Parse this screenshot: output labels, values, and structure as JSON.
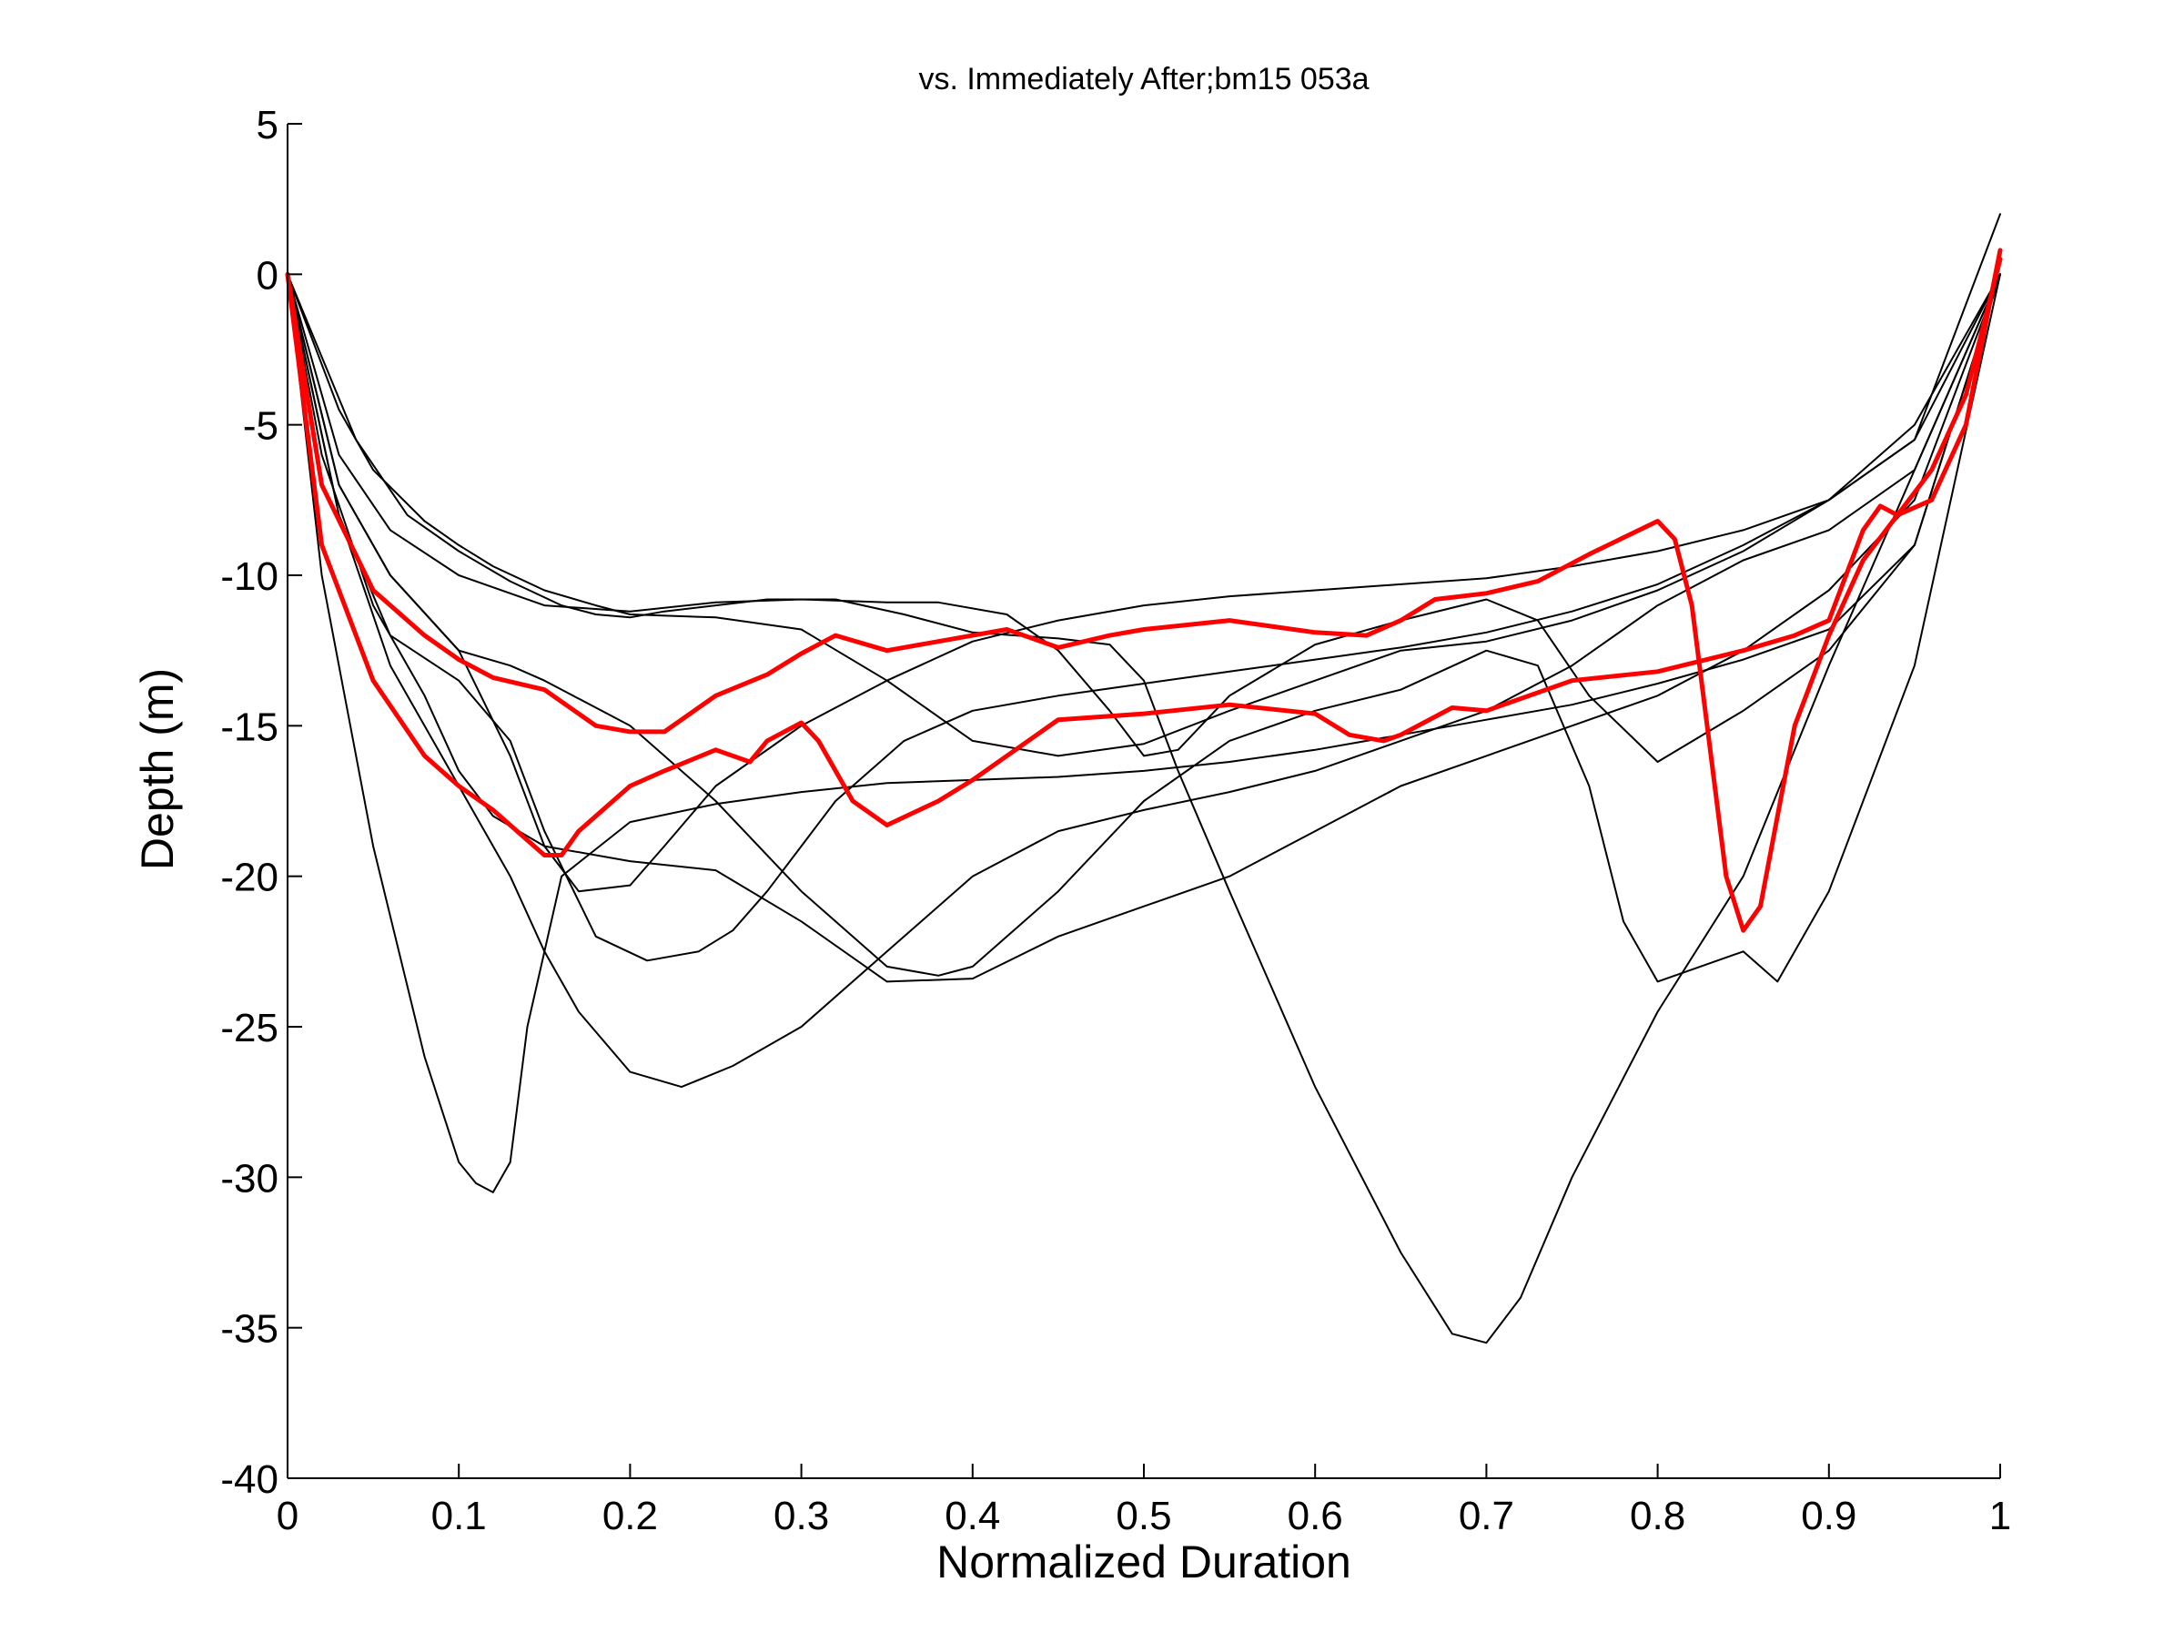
{
  "chart_data": {
    "type": "line",
    "title": "vs. Immediately After;bm15 053a",
    "xlabel": "Normalized Duration",
    "ylabel": "Depth (m)",
    "xlim": [
      0,
      1
    ],
    "ylim": [
      -40,
      5
    ],
    "xticks": [
      "0",
      "0.1",
      "0.2",
      "0.3",
      "0.4",
      "0.5",
      "0.6",
      "0.7",
      "0.8",
      "0.9",
      "1"
    ],
    "yticks": [
      "5",
      "0",
      "-5",
      "-10",
      "-15",
      "-20",
      "-25",
      "-30",
      "-35",
      "-40"
    ],
    "grid": false,
    "legend": "none",
    "colors": {
      "comparison": "#000000",
      "highlight": "#ff0000",
      "axes": "#000000",
      "background": "#ffffff"
    },
    "series": [
      {
        "group": "comparison",
        "x": [
          0,
          0.02,
          0.05,
          0.08,
          0.1,
          0.11,
          0.12,
          0.13,
          0.14,
          0.16,
          0.2,
          0.25,
          0.3,
          0.35,
          0.4,
          0.45,
          0.5,
          0.55,
          0.6,
          0.65,
          0.7,
          0.75,
          0.8,
          0.85,
          0.9,
          0.95,
          1.0
        ],
        "y": [
          0,
          -10,
          -19,
          -26,
          -29.5,
          -30.2,
          -30.5,
          -29.5,
          -25,
          -20,
          -18.2,
          -17.6,
          -17.2,
          -16.9,
          -16.8,
          -16.7,
          -16.5,
          -16.2,
          -15.8,
          -15.3,
          -14.8,
          -14.3,
          -13.6,
          -12.8,
          -11.8,
          -9,
          0
        ]
      },
      {
        "group": "comparison",
        "x": [
          0,
          0.03,
          0.06,
          0.1,
          0.13,
          0.15,
          0.17,
          0.2,
          0.22,
          0.25,
          0.3,
          0.35,
          0.4,
          0.45,
          0.5,
          0.55,
          0.6,
          0.65,
          0.7,
          0.75,
          0.8,
          0.85,
          0.9,
          0.95,
          1.0
        ],
        "y": [
          0,
          -7,
          -10,
          -12.5,
          -16,
          -19,
          -20.5,
          -20.3,
          -19,
          -17,
          -15,
          -13.5,
          -12.2,
          -11.5,
          -11,
          -10.7,
          -10.5,
          -10.3,
          -10.1,
          -9.7,
          -9.2,
          -8.5,
          -7.5,
          -5.5,
          0
        ]
      },
      {
        "group": "comparison",
        "x": [
          0,
          0.03,
          0.06,
          0.1,
          0.13,
          0.15,
          0.18,
          0.21,
          0.24,
          0.26,
          0.28,
          0.32,
          0.36,
          0.4,
          0.45,
          0.5,
          0.55,
          0.6,
          0.65,
          0.7,
          0.75,
          0.8,
          0.85,
          0.9,
          0.95,
          1.0
        ],
        "y": [
          0,
          -8,
          -12,
          -13.5,
          -15.5,
          -18.5,
          -22,
          -22.8,
          -22.5,
          -21.8,
          -20.5,
          -17.5,
          -15.5,
          -14.5,
          -14,
          -13.6,
          -13.2,
          -12.8,
          -12.4,
          -11.9,
          -11.2,
          -10.3,
          -9,
          -7.5,
          -5,
          0
        ]
      },
      {
        "group": "comparison",
        "x": [
          0,
          0.03,
          0.06,
          0.1,
          0.13,
          0.15,
          0.17,
          0.2,
          0.23,
          0.26,
          0.3,
          0.35,
          0.4,
          0.45,
          0.5,
          0.55,
          0.6,
          0.65,
          0.7,
          0.75,
          0.8,
          0.85,
          0.9,
          0.95,
          1.0
        ],
        "y": [
          0,
          -8,
          -13,
          -17,
          -20,
          -22.5,
          -24.5,
          -26.5,
          -27,
          -26.3,
          -25,
          -22.5,
          -20,
          -18.5,
          -17.8,
          -17.2,
          -16.5,
          -15.5,
          -14.5,
          -13,
          -11,
          -9.5,
          -8.5,
          -6.5,
          0
        ]
      },
      {
        "group": "comparison",
        "x": [
          0,
          0.04,
          0.07,
          0.1,
          0.13,
          0.16,
          0.18,
          0.2,
          0.22,
          0.25,
          0.28,
          0.32,
          0.36,
          0.4,
          0.45,
          0.48,
          0.5,
          0.52,
          0.55,
          0.6,
          0.65,
          0.68,
          0.7,
          0.72,
          0.75,
          0.8,
          0.85,
          0.9,
          0.95,
          1.0
        ],
        "y": [
          0,
          -5.5,
          -8,
          -9.2,
          -10.2,
          -11,
          -11.3,
          -11.4,
          -11.2,
          -11,
          -10.8,
          -10.8,
          -11.3,
          -11.9,
          -12.1,
          -12.3,
          -13.5,
          -16.5,
          -20.5,
          -27,
          -32.5,
          -35.2,
          -35.5,
          -34,
          -30,
          -24.5,
          -20,
          -13,
          -6.5,
          0
        ]
      },
      {
        "group": "comparison",
        "x": [
          0,
          0.03,
          0.06,
          0.1,
          0.13,
          0.15,
          0.2,
          0.25,
          0.3,
          0.35,
          0.38,
          0.4,
          0.45,
          0.5,
          0.55,
          0.6,
          0.65,
          0.7,
          0.73,
          0.76,
          0.78,
          0.8,
          0.85,
          0.87,
          0.9,
          0.95,
          1.0
        ],
        "y": [
          0,
          -7,
          -10,
          -12.5,
          -13,
          -13.5,
          -15,
          -17.5,
          -20.5,
          -23,
          -23.3,
          -23,
          -20.5,
          -17.5,
          -15.5,
          -14.5,
          -13.8,
          -12.5,
          -13,
          -17,
          -21.5,
          -23.5,
          -22.5,
          -23.5,
          -20.5,
          -13,
          0
        ]
      },
      {
        "group": "comparison",
        "x": [
          0,
          0.02,
          0.05,
          0.08,
          0.1,
          0.12,
          0.15,
          0.2,
          0.25,
          0.3,
          0.35,
          0.4,
          0.45,
          0.5,
          0.55,
          0.6,
          0.65,
          0.7,
          0.75,
          0.8,
          0.85,
          0.9,
          0.95,
          1.0
        ],
        "y": [
          0,
          -6,
          -11,
          -14,
          -16.5,
          -18,
          -19,
          -19.5,
          -19.8,
          -21.5,
          -23.5,
          -23.4,
          -22,
          -21,
          -20,
          -18.5,
          -17,
          -16,
          -15,
          -14,
          -12.5,
          -10.5,
          -7.5,
          0
        ]
      },
      {
        "group": "comparison",
        "x": [
          0,
          0.03,
          0.06,
          0.1,
          0.15,
          0.2,
          0.25,
          0.3,
          0.35,
          0.38,
          0.42,
          0.45,
          0.48,
          0.5,
          0.52,
          0.55,
          0.6,
          0.65,
          0.7,
          0.73,
          0.76,
          0.8,
          0.85,
          0.9,
          0.95,
          1.0
        ],
        "y": [
          0,
          -6,
          -8.5,
          -10,
          -11,
          -11.2,
          -10.9,
          -10.8,
          -10.9,
          -10.9,
          -11.3,
          -12.5,
          -14.5,
          -16,
          -15.8,
          -14,
          -12.3,
          -11.5,
          -10.8,
          -11.5,
          -14,
          -16.2,
          -14.5,
          -12.5,
          -9,
          0
        ]
      },
      {
        "group": "comparison",
        "x": [
          0,
          0.03,
          0.05,
          0.08,
          0.1,
          0.12,
          0.15,
          0.18,
          0.2,
          0.25,
          0.3,
          0.35,
          0.4,
          0.45,
          0.5,
          0.55,
          0.6,
          0.65,
          0.7,
          0.75,
          0.8,
          0.85,
          0.9,
          0.95,
          1.0
        ],
        "y": [
          0,
          -4.5,
          -6.5,
          -8.2,
          -9,
          -9.7,
          -10.5,
          -11,
          -11.3,
          -11.4,
          -11.8,
          -13.5,
          -15.5,
          -16,
          -15.6,
          -14.5,
          -13.5,
          -12.5,
          -12.2,
          -11.5,
          -10.5,
          -9.2,
          -7.5,
          -5.5,
          2
        ]
      },
      {
        "group": "highlight",
        "x": [
          0,
          0.02,
          0.05,
          0.08,
          0.1,
          0.12,
          0.15,
          0.18,
          0.2,
          0.22,
          0.25,
          0.28,
          0.3,
          0.32,
          0.35,
          0.38,
          0.4,
          0.42,
          0.45,
          0.48,
          0.5,
          0.55,
          0.6,
          0.63,
          0.65,
          0.67,
          0.7,
          0.73,
          0.76,
          0.8,
          0.81,
          0.82,
          0.83,
          0.84,
          0.85,
          0.86,
          0.87,
          0.88,
          0.9,
          0.92,
          0.94,
          0.96,
          0.98,
          1.0
        ],
        "y": [
          0,
          -7,
          -10.5,
          -12,
          -12.8,
          -13.4,
          -13.8,
          -15,
          -15.2,
          -15.2,
          -14,
          -13.3,
          -12.6,
          -12,
          -12.5,
          -12.2,
          -12,
          -11.8,
          -12.4,
          -12,
          -11.8,
          -11.5,
          -11.9,
          -12,
          -11.5,
          -10.8,
          -10.6,
          -10.2,
          -9.3,
          -8.2,
          -8.8,
          -11,
          -15.5,
          -20,
          -21.8,
          -21,
          -18,
          -15,
          -12,
          -9.5,
          -8,
          -6.5,
          -4,
          0.5
        ]
      },
      {
        "group": "highlight",
        "x": [
          0,
          0.02,
          0.05,
          0.08,
          0.1,
          0.12,
          0.14,
          0.15,
          0.16,
          0.17,
          0.2,
          0.22,
          0.25,
          0.27,
          0.28,
          0.3,
          0.31,
          0.33,
          0.35,
          0.38,
          0.4,
          0.45,
          0.5,
          0.55,
          0.6,
          0.62,
          0.64,
          0.65,
          0.68,
          0.7,
          0.75,
          0.8,
          0.85,
          0.88,
          0.9,
          0.92,
          0.93,
          0.94,
          0.96,
          0.98,
          1.0
        ],
        "y": [
          0,
          -9,
          -13.5,
          -16,
          -17,
          -17.8,
          -18.8,
          -19.3,
          -19.3,
          -18.5,
          -17,
          -16.5,
          -15.8,
          -16.2,
          -15.5,
          -14.9,
          -15.5,
          -17.5,
          -18.3,
          -17.5,
          -16.8,
          -14.8,
          -14.6,
          -14.3,
          -14.6,
          -15.3,
          -15.5,
          -15.3,
          -14.4,
          -14.5,
          -13.5,
          -13.2,
          -12.5,
          -12,
          -11.5,
          -8.5,
          -7.7,
          -8,
          -7.5,
          -5,
          0.8
        ]
      }
    ]
  }
}
